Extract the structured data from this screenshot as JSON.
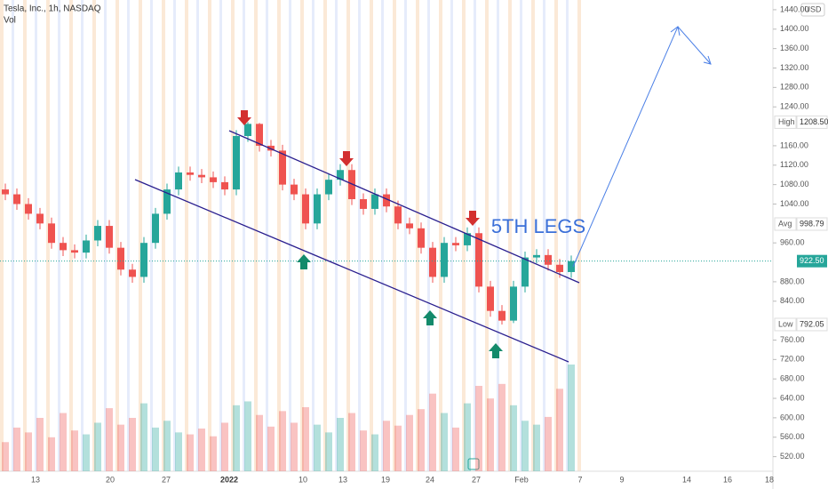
{
  "chart_data": {
    "type": "candlestick",
    "title": "Tesla, Inc., 1h, NASDAQ",
    "subtitle": "Vol",
    "currency": "USD",
    "annotation": "5TH LEGS",
    "ylim": [
      490,
      1460
    ],
    "yticks": [
      {
        "value": 520,
        "label": "520.00"
      },
      {
        "value": 560,
        "label": "560.00"
      },
      {
        "value": 600,
        "label": "600.00"
      },
      {
        "value": 640,
        "label": "640.00"
      },
      {
        "value": 680,
        "label": "680.00"
      },
      {
        "value": 720,
        "label": "720.00"
      },
      {
        "value": 760,
        "label": "760.00"
      },
      {
        "value": 840,
        "label": "840.00"
      },
      {
        "value": 880,
        "label": "880.00"
      },
      {
        "value": 960,
        "label": "960.00"
      },
      {
        "value": 1040,
        "label": "1040.00"
      },
      {
        "value": 1080,
        "label": "1080.00"
      },
      {
        "value": 1120,
        "label": "1120.00"
      },
      {
        "value": 1160,
        "label": "1160.00"
      },
      {
        "value": 1240,
        "label": "1240.00"
      },
      {
        "value": 1280,
        "label": "1280.00"
      },
      {
        "value": 1320,
        "label": "1320.00"
      },
      {
        "value": 1360,
        "label": "1360.00"
      },
      {
        "value": 1400,
        "label": "1400.00"
      },
      {
        "value": 1440,
        "label": "1440.00"
      }
    ],
    "xtick_labels": [
      "13",
      "20",
      "27",
      "2022",
      "10",
      "13",
      "19",
      "24",
      "27",
      "Feb",
      "7",
      "9",
      "14",
      "16",
      "18"
    ],
    "price_lines": [
      {
        "name": "High",
        "value": 1208.5,
        "label": "1208.50"
      },
      {
        "name": "Avg",
        "value": 998.79,
        "label": "998.79"
      },
      {
        "name": "Low",
        "value": 792.05,
        "label": "792.05"
      }
    ],
    "last_price": {
      "value": 922.5,
      "label": "922.50"
    },
    "up_color": "#26a69a",
    "down_color": "#ef5350",
    "series": [
      {
        "open": [
          1070,
          1060,
          1040,
          1020,
          1000,
          960,
          945,
          940,
          965,
          995,
          950,
          905,
          890,
          960,
          1020,
          1070,
          1105,
          1100,
          1095,
          1085,
          1070,
          1180,
          1205,
          1160,
          1150,
          1080,
          1060,
          1000,
          1060,
          1090,
          1110,
          1050,
          1030,
          1060,
          1035,
          1000,
          990,
          950,
          890,
          960,
          955,
          980,
          870,
          820,
          800,
          870,
          930,
          935,
          915,
          900
        ],
        "high": [
          1082,
          1072,
          1052,
          1032,
          1012,
          972,
          957,
          977,
          1007,
          1007,
          962,
          917,
          972,
          1032,
          1082,
          1117,
          1117,
          1112,
          1107,
          1097,
          1192,
          1208.5,
          1207,
          1172,
          1162,
          1092,
          1072,
          1072,
          1102,
          1122,
          1122,
          1062,
          1072,
          1072,
          1047,
          1012,
          1002,
          962,
          972,
          972,
          992,
          992,
          882,
          832,
          882,
          942,
          947,
          947,
          927,
          934
        ],
        "low": [
          1048,
          1028,
          1008,
          988,
          948,
          933,
          928,
          928,
          953,
          938,
          893,
          878,
          878,
          948,
          1008,
          1058,
          1088,
          1083,
          1073,
          1058,
          1058,
          1168,
          1148,
          1138,
          1068,
          1048,
          988,
          988,
          1048,
          1078,
          1038,
          1018,
          1018,
          1023,
          988,
          978,
          938,
          878,
          878,
          943,
          943,
          858,
          808,
          792.05,
          795,
          858,
          918,
          903,
          888,
          888
        ],
        "close": [
          1060,
          1040,
          1020,
          1000,
          960,
          945,
          940,
          965,
          995,
          950,
          905,
          890,
          960,
          1020,
          1070,
          1105,
          1100,
          1095,
          1085,
          1070,
          1180,
          1205,
          1160,
          1150,
          1080,
          1060,
          1000,
          1060,
          1090,
          1110,
          1050,
          1030,
          1060,
          1035,
          1000,
          990,
          950,
          890,
          960,
          955,
          980,
          870,
          820,
          800,
          870,
          930,
          935,
          915,
          900,
          922.5
        ],
        "volume": [
          30,
          45,
          40,
          55,
          35,
          60,
          42,
          38,
          50,
          65,
          48,
          55,
          70,
          45,
          52,
          40,
          38,
          44,
          36,
          50,
          68,
          72,
          58,
          46,
          62,
          50,
          66,
          48,
          40,
          55,
          60,
          42,
          38,
          52,
          47,
          58,
          64,
          80,
          60,
          45,
          70,
          88,
          75,
          90,
          68,
          52,
          48,
          56,
          85,
          110
        ]
      }
    ]
  }
}
